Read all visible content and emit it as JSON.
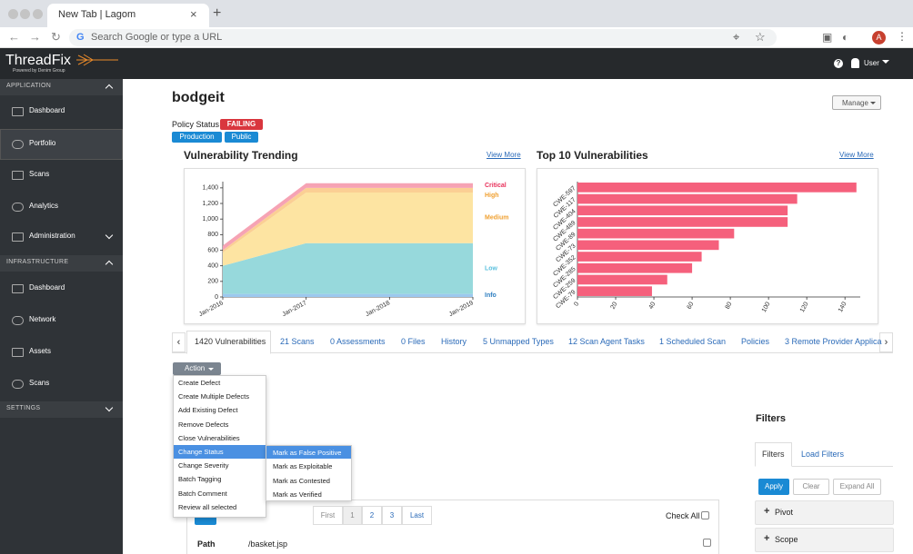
{
  "browser": {
    "tab_title": "New Tab | Lagom",
    "address": "Search Google or type a URL",
    "avatar": "A"
  },
  "header": {
    "logo": "ThreadFix",
    "tagline": "Powered by Denim Group",
    "user": "User"
  },
  "sidebar": {
    "sections": [
      {
        "title": "APPLICATION",
        "items": [
          "Dashboard",
          "Portfolio",
          "Scans",
          "Analytics",
          "Administration"
        ]
      },
      {
        "title": "INFRASTRUCTURE",
        "items": [
          "Dashboard",
          "Network",
          "Assets",
          "Scans"
        ]
      },
      {
        "title": "SETTINGS"
      }
    ]
  },
  "app": {
    "name": "bodgeit",
    "manage": "Manage",
    "policy_label": "Policy Status",
    "policy_status": "FAILING",
    "tags": [
      "Production",
      "Public"
    ]
  },
  "chart_data": [
    {
      "type": "area",
      "title": "Vulnerability Trending",
      "link": "View More",
      "stacked": true,
      "x": [
        "Jan-2016",
        "Jan-2017",
        "Jan-2018",
        "Jan-2019"
      ],
      "series": [
        {
          "name": "Info",
          "color": "#9cc8ee",
          "label_color": "#2f7fc1",
          "values": [
            40,
            40,
            40,
            40
          ]
        },
        {
          "name": "Low",
          "color": "#97d9dc",
          "label_color": "#5bc0de",
          "values": [
            360,
            650,
            650,
            650
          ]
        },
        {
          "name": "Medium",
          "color": "#fde4a2",
          "label_color": "#f0a030",
          "values": [
            170,
            650,
            650,
            650
          ]
        },
        {
          "name": "High",
          "color": "#fbcf94",
          "label_color": "#f0a030",
          "values": [
            30,
            60,
            60,
            60
          ]
        },
        {
          "name": "Critical",
          "color": "#f6a3b4",
          "label_color": "#e8305a",
          "values": [
            60,
            60,
            60,
            60
          ]
        }
      ],
      "ylim": [
        0,
        1480
      ],
      "yticks": [
        0,
        200,
        400,
        600,
        800,
        {
          "value": 1000,
          "label": "1,000"
        },
        {
          "value": 1200,
          "label": "1,200"
        },
        {
          "value": 1400,
          "label": "1,400"
        }
      ]
    },
    {
      "type": "hbar",
      "title": "Top 10 Vulnerabilities",
      "link": "View More",
      "categories": [
        "CWE-597",
        "CWE-117",
        "CWE-404",
        "CWE-489",
        "CWE-89",
        "CWE-73",
        "CWE-352",
        "CWE-285",
        "CWE-259",
        "CWE-79"
      ],
      "values": [
        146,
        115,
        110,
        110,
        82,
        74,
        65,
        60,
        47,
        39
      ],
      "color": "#f5607c",
      "xlim": [
        0,
        148
      ],
      "xticks": [
        0,
        20,
        40,
        60,
        80,
        100,
        120,
        140
      ]
    }
  ],
  "tabs": [
    "1420 Vulnerabilities",
    "21 Scans",
    "0 Assessments",
    "0 Files",
    "History",
    "5 Unmapped Types",
    "12 Scan Agent Tasks",
    "1 Scheduled Scan",
    "Policies",
    "3 Remote Provider Applica"
  ],
  "actions": {
    "button": "Action",
    "items": [
      "Create Defect",
      "Create Multiple Defects",
      "Add Existing Defect",
      "Remove Defects",
      "Close Vulnerabilities",
      "Change Status",
      "Change Severity",
      "Batch Tagging",
      "Batch Comment",
      "Review all selected"
    ],
    "submenu": [
      "Mark as False Positive",
      "Mark as Exploitable",
      "Mark as Contested",
      "Mark as Verified"
    ]
  },
  "pagination": [
    "First",
    "1",
    "2",
    "3",
    "Last"
  ],
  "check_all": "Check All",
  "table": {
    "rows": [
      [
        "Path",
        "/basket.jsp"
      ]
    ]
  },
  "filters": {
    "title": "Filters",
    "tabs": [
      "Filters",
      "Load Filters"
    ],
    "buttons": [
      "Apply",
      "Clear",
      "Expand All"
    ],
    "sections": [
      "Pivot",
      "Scope"
    ]
  }
}
